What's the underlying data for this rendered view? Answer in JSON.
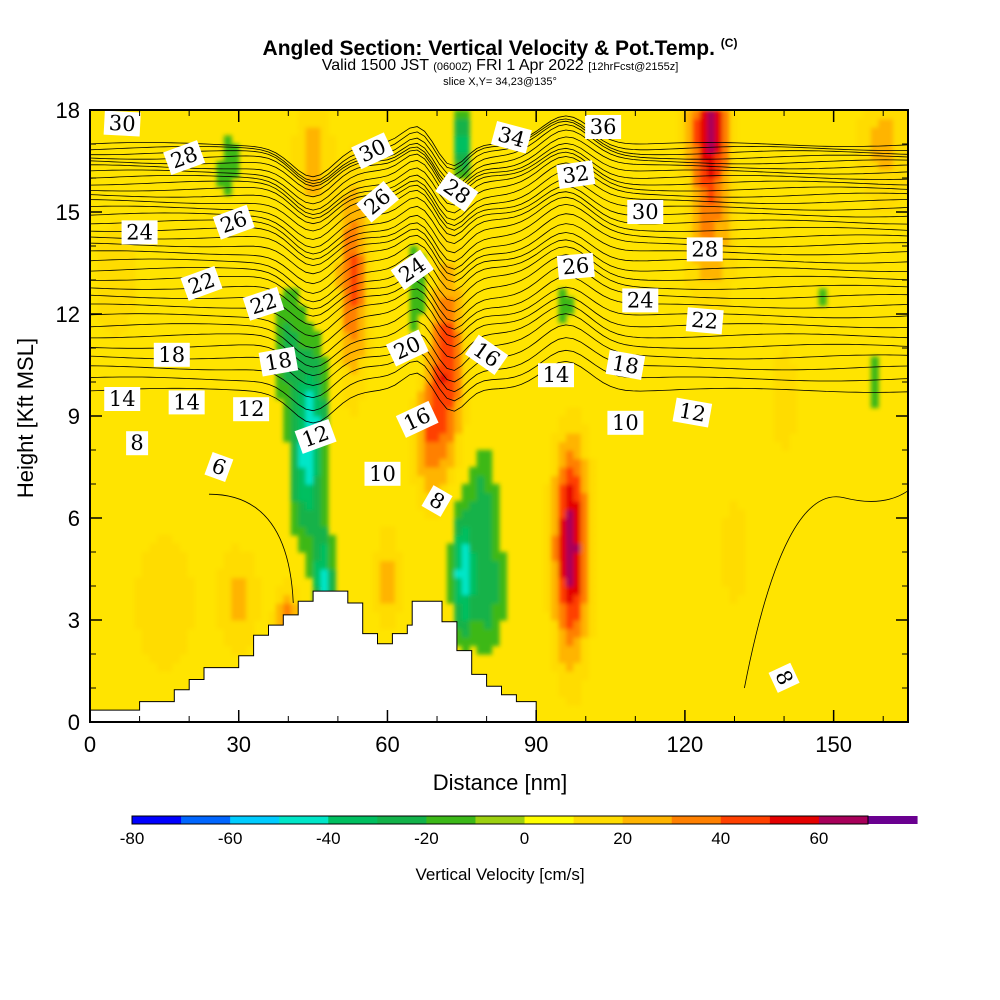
{
  "header": {
    "title_main": "Angled Section: Vertical Velocity & Pot.Temp.",
    "title_tag": "(C)",
    "valid_a": "Valid 1500 JST",
    "valid_z": "(0600Z)",
    "valid_b": "FRI 1 Apr 2022",
    "fcst": "[12hrFcst@2155z]",
    "slice": "slice X,Y= 34,23@135°"
  },
  "chart_data": {
    "type": "heatmap",
    "xlabel": "Distance [nm]",
    "ylabel": "Height [Kft MSL]",
    "xlim": [
      0,
      165
    ],
    "ylim": [
      0,
      18
    ],
    "xticks": [
      0,
      30,
      60,
      90,
      120,
      150
    ],
    "yticks": [
      0,
      3,
      6,
      9,
      12,
      15,
      18
    ],
    "colorbar": {
      "label": "Vertical Velocity [cm/s]",
      "ticks": [
        -80,
        -60,
        -40,
        -20,
        0,
        20,
        40,
        60
      ],
      "levels": [
        -80,
        -70,
        -60,
        -50,
        -40,
        -30,
        -20,
        -10,
        0,
        10,
        20,
        30,
        40,
        50,
        60,
        70
      ],
      "colors": [
        "#0000ff",
        "#0066ff",
        "#00ccff",
        "#00e6c8",
        "#00bf60",
        "#12b24a",
        "#3cb818",
        "#9cd010",
        "#ffff00",
        "#ffdc00",
        "#ffb400",
        "#ff8000",
        "#ff4000",
        "#e40000",
        "#a8005a",
        "#6a0090"
      ]
    },
    "features": [
      {
        "kind": "updraft",
        "x": 97,
        "y": 5.2,
        "peak": 65
      },
      {
        "kind": "updraft",
        "x": 125,
        "y": 17.5,
        "peak": 60
      },
      {
        "kind": "updraft",
        "x": 72,
        "y": 10.5,
        "peak": 45
      },
      {
        "kind": "updraft",
        "x": 53,
        "y": 13,
        "peak": 40
      },
      {
        "kind": "downdraft",
        "x": 47,
        "y": 4.2,
        "peak": -45
      },
      {
        "kind": "downdraft",
        "x": 75,
        "y": 4.5,
        "peak": -45
      },
      {
        "kind": "downdraft",
        "x": 45,
        "y": 9,
        "peak": -40
      },
      {
        "kind": "downdraft",
        "x": 75,
        "y": 17,
        "peak": -40
      }
    ],
    "terrain": [
      [
        0,
        0.35
      ],
      [
        10,
        0.35
      ],
      [
        10,
        0.6
      ],
      [
        17,
        0.6
      ],
      [
        17,
        0.95
      ],
      [
        20,
        0.95
      ],
      [
        20,
        1.25
      ],
      [
        23,
        1.25
      ],
      [
        23,
        1.6
      ],
      [
        30,
        1.6
      ],
      [
        30,
        1.95
      ],
      [
        33,
        1.95
      ],
      [
        33,
        2.55
      ],
      [
        36,
        2.55
      ],
      [
        36,
        2.85
      ],
      [
        39,
        2.85
      ],
      [
        39,
        3.15
      ],
      [
        42,
        3.15
      ],
      [
        42,
        3.55
      ],
      [
        45,
        3.55
      ],
      [
        45,
        3.85
      ],
      [
        52,
        3.85
      ],
      [
        52,
        3.5
      ],
      [
        55,
        3.5
      ],
      [
        55,
        2.6
      ],
      [
        58,
        2.6
      ],
      [
        58,
        2.3
      ],
      [
        61,
        2.3
      ],
      [
        61,
        2.6
      ],
      [
        64,
        2.6
      ],
      [
        64,
        2.85
      ],
      [
        65,
        2.85
      ],
      [
        65,
        3.55
      ],
      [
        71,
        3.55
      ],
      [
        71,
        2.95
      ],
      [
        74,
        2.95
      ],
      [
        74,
        2.1
      ],
      [
        77,
        2.1
      ],
      [
        77,
        1.4
      ],
      [
        80,
        1.4
      ],
      [
        80,
        1.05
      ],
      [
        83,
        1.05
      ],
      [
        83,
        0.8
      ],
      [
        86,
        0.8
      ],
      [
        86,
        0.6
      ],
      [
        90,
        0.6
      ],
      [
        90,
        0
      ]
    ],
    "theta_labels": [
      {
        "text": "30",
        "x": 6.5,
        "y": 17.6,
        "angle": -3
      },
      {
        "text": "28",
        "x": 19,
        "y": 16.6,
        "angle": 20
      },
      {
        "text": "24",
        "x": 10,
        "y": 14.4,
        "angle": 0
      },
      {
        "text": "26",
        "x": 29,
        "y": 14.7,
        "angle": 20
      },
      {
        "text": "22",
        "x": 22.5,
        "y": 12.9,
        "angle": 20
      },
      {
        "text": "22",
        "x": 35,
        "y": 12.3,
        "angle": 18
      },
      {
        "text": "18",
        "x": 16.5,
        "y": 10.8,
        "angle": 0
      },
      {
        "text": "18",
        "x": 38,
        "y": 10.6,
        "angle": 10
      },
      {
        "text": "14",
        "x": 6.5,
        "y": 9.5,
        "angle": 0
      },
      {
        "text": "14",
        "x": 19.5,
        "y": 9.4,
        "angle": 0
      },
      {
        "text": "12",
        "x": 32.5,
        "y": 9.2,
        "angle": 0
      },
      {
        "text": "12",
        "x": 45.5,
        "y": 8.4,
        "angle": 20
      },
      {
        "text": "8",
        "x": 9.5,
        "y": 8.2,
        "angle": 0
      },
      {
        "text": "6",
        "x": 26,
        "y": 7.5,
        "angle": -20
      },
      {
        "text": "30",
        "x": 57,
        "y": 16.8,
        "angle": 25
      },
      {
        "text": "26",
        "x": 58,
        "y": 15.3,
        "angle": 40
      },
      {
        "text": "28",
        "x": 74,
        "y": 15.6,
        "angle": -35
      },
      {
        "text": "24",
        "x": 65,
        "y": 13.3,
        "angle": 35
      },
      {
        "text": "20",
        "x": 64,
        "y": 11,
        "angle": 25
      },
      {
        "text": "16",
        "x": 80,
        "y": 10.8,
        "angle": -35
      },
      {
        "text": "16",
        "x": 66,
        "y": 8.9,
        "angle": 25
      },
      {
        "text": "10",
        "x": 59,
        "y": 7.3,
        "angle": 0
      },
      {
        "text": "8",
        "x": 70,
        "y": 6.5,
        "angle": -30
      },
      {
        "text": "34",
        "x": 85,
        "y": 17.2,
        "angle": -15
      },
      {
        "text": "36",
        "x": 103.5,
        "y": 17.5,
        "angle": 0
      },
      {
        "text": "32",
        "x": 98,
        "y": 16.1,
        "angle": 8
      },
      {
        "text": "30",
        "x": 112,
        "y": 15,
        "angle": 0
      },
      {
        "text": "28",
        "x": 124,
        "y": 13.9,
        "angle": 0
      },
      {
        "text": "26",
        "x": 98,
        "y": 13.4,
        "angle": 5
      },
      {
        "text": "24",
        "x": 111,
        "y": 12.4,
        "angle": 0
      },
      {
        "text": "22",
        "x": 124,
        "y": 11.8,
        "angle": -5
      },
      {
        "text": "18",
        "x": 108,
        "y": 10.5,
        "angle": -10
      },
      {
        "text": "14",
        "x": 94,
        "y": 10.2,
        "angle": 0
      },
      {
        "text": "10",
        "x": 108,
        "y": 8.8,
        "angle": 0
      },
      {
        "text": "12",
        "x": 121.5,
        "y": 9.1,
        "angle": -10
      },
      {
        "text": "8",
        "x": 140,
        "y": 1.3,
        "angle": -65
      }
    ]
  }
}
